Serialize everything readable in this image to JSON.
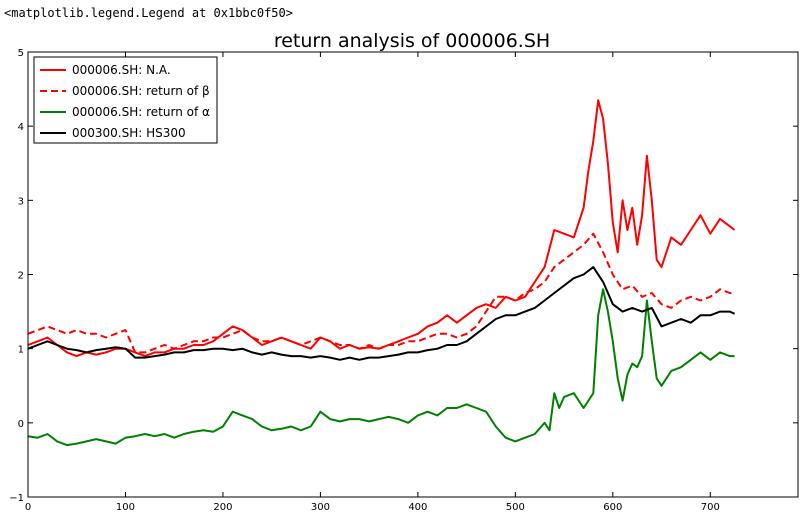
{
  "repr_text": "<matplotlib.legend.Legend at 0x1bbc0f50>",
  "chart_data": {
    "type": "line",
    "title": "return analysis of 000006.SH",
    "xlabel": "",
    "ylabel": "",
    "xlim": [
      0,
      790
    ],
    "ylim": [
      -1,
      5
    ],
    "xticks": [
      0,
      100,
      200,
      300,
      400,
      500,
      600,
      700
    ],
    "yticks": [
      -1,
      0,
      1,
      2,
      3,
      4,
      5
    ],
    "grid": false,
    "legend_position": "top-left",
    "series": [
      {
        "name": "000006.SH: N.A.",
        "color": "#ff0000",
        "style": "solid",
        "x": [
          0,
          10,
          20,
          30,
          40,
          50,
          60,
          70,
          80,
          90,
          100,
          110,
          120,
          130,
          140,
          150,
          160,
          170,
          180,
          190,
          200,
          210,
          220,
          230,
          240,
          250,
          260,
          270,
          280,
          290,
          300,
          310,
          320,
          330,
          340,
          350,
          360,
          370,
          380,
          390,
          400,
          410,
          420,
          430,
          440,
          450,
          460,
          470,
          480,
          490,
          500,
          510,
          520,
          530,
          540,
          550,
          560,
          570,
          575,
          580,
          585,
          590,
          595,
          600,
          605,
          610,
          615,
          620,
          625,
          630,
          635,
          640,
          645,
          650,
          660,
          670,
          680,
          690,
          700,
          710,
          720,
          725
        ],
        "values": [
          1.05,
          1.1,
          1.15,
          1.05,
          0.95,
          0.9,
          0.95,
          0.92,
          0.95,
          1.0,
          1.0,
          0.95,
          0.9,
          0.95,
          0.95,
          1.0,
          1.0,
          1.05,
          1.05,
          1.1,
          1.2,
          1.3,
          1.25,
          1.15,
          1.05,
          1.1,
          1.15,
          1.1,
          1.05,
          1.0,
          1.15,
          1.1,
          1.0,
          1.05,
          1.0,
          1.02,
          1.0,
          1.05,
          1.1,
          1.15,
          1.2,
          1.3,
          1.35,
          1.45,
          1.35,
          1.45,
          1.55,
          1.6,
          1.55,
          1.7,
          1.65,
          1.7,
          1.9,
          2.1,
          2.6,
          2.55,
          2.5,
          2.9,
          3.4,
          3.8,
          4.35,
          4.1,
          3.5,
          2.7,
          2.3,
          3.0,
          2.6,
          2.9,
          2.4,
          2.8,
          3.6,
          3.0,
          2.2,
          2.1,
          2.5,
          2.4,
          2.6,
          2.8,
          2.55,
          2.75,
          2.65,
          2.6
        ]
      },
      {
        "name": "000006.SH: return of β",
        "color": "#ff0000",
        "style": "dashed",
        "x": [
          0,
          10,
          20,
          30,
          40,
          50,
          60,
          70,
          80,
          90,
          100,
          110,
          120,
          130,
          140,
          150,
          160,
          170,
          180,
          190,
          200,
          210,
          220,
          230,
          240,
          250,
          260,
          270,
          280,
          290,
          300,
          310,
          320,
          330,
          340,
          350,
          360,
          370,
          380,
          390,
          400,
          410,
          420,
          430,
          440,
          450,
          460,
          470,
          480,
          490,
          500,
          510,
          520,
          530,
          540,
          550,
          560,
          570,
          580,
          590,
          600,
          610,
          620,
          630,
          640,
          650,
          660,
          670,
          680,
          690,
          700,
          710,
          720,
          725
        ],
        "values": [
          1.2,
          1.25,
          1.3,
          1.25,
          1.2,
          1.25,
          1.2,
          1.2,
          1.15,
          1.2,
          1.25,
          0.95,
          0.95,
          1.0,
          1.05,
          1.0,
          1.05,
          1.1,
          1.1,
          1.15,
          1.15,
          1.2,
          1.25,
          1.15,
          1.1,
          1.1,
          1.15,
          1.1,
          1.05,
          1.1,
          1.15,
          1.1,
          1.05,
          1.05,
          1.0,
          1.05,
          1.0,
          1.05,
          1.05,
          1.1,
          1.1,
          1.15,
          1.2,
          1.2,
          1.15,
          1.2,
          1.3,
          1.5,
          1.7,
          1.7,
          1.65,
          1.75,
          1.8,
          1.9,
          2.1,
          2.2,
          2.3,
          2.4,
          2.55,
          2.3,
          2.0,
          1.8,
          1.85,
          1.7,
          1.75,
          1.6,
          1.55,
          1.65,
          1.7,
          1.65,
          1.7,
          1.8,
          1.75,
          1.75
        ]
      },
      {
        "name": "000006.SH: return of α",
        "color": "#008000",
        "style": "solid",
        "x": [
          0,
          10,
          20,
          30,
          40,
          50,
          60,
          70,
          80,
          90,
          100,
          110,
          120,
          130,
          140,
          150,
          160,
          170,
          180,
          190,
          200,
          210,
          220,
          230,
          240,
          250,
          260,
          270,
          280,
          290,
          300,
          310,
          320,
          330,
          340,
          350,
          360,
          370,
          380,
          390,
          400,
          410,
          420,
          430,
          440,
          450,
          460,
          470,
          480,
          490,
          500,
          510,
          520,
          530,
          535,
          540,
          545,
          550,
          560,
          570,
          580,
          585,
          590,
          595,
          600,
          605,
          610,
          615,
          620,
          625,
          630,
          635,
          640,
          645,
          650,
          660,
          670,
          680,
          690,
          700,
          710,
          720,
          725
        ],
        "values": [
          -0.18,
          -0.2,
          -0.15,
          -0.25,
          -0.3,
          -0.28,
          -0.25,
          -0.22,
          -0.25,
          -0.28,
          -0.2,
          -0.18,
          -0.15,
          -0.18,
          -0.15,
          -0.2,
          -0.15,
          -0.12,
          -0.1,
          -0.12,
          -0.05,
          0.15,
          0.1,
          0.05,
          -0.05,
          -0.1,
          -0.08,
          -0.05,
          -0.1,
          -0.05,
          0.15,
          0.05,
          0.02,
          0.05,
          0.05,
          0.02,
          0.05,
          0.08,
          0.05,
          0.0,
          0.1,
          0.15,
          0.1,
          0.2,
          0.2,
          0.25,
          0.2,
          0.15,
          -0.05,
          -0.2,
          -0.25,
          -0.2,
          -0.15,
          0.0,
          -0.1,
          0.4,
          0.2,
          0.35,
          0.4,
          0.2,
          0.4,
          1.45,
          1.8,
          1.5,
          1.1,
          0.6,
          0.3,
          0.65,
          0.8,
          0.75,
          0.9,
          1.65,
          1.1,
          0.6,
          0.5,
          0.7,
          0.75,
          0.85,
          0.95,
          0.85,
          0.95,
          0.9,
          0.9
        ]
      },
      {
        "name": "000300.SH: HS300",
        "color": "#000000",
        "style": "solid",
        "x": [
          0,
          10,
          20,
          30,
          40,
          50,
          60,
          70,
          80,
          90,
          100,
          110,
          120,
          130,
          140,
          150,
          160,
          170,
          180,
          190,
          200,
          210,
          220,
          230,
          240,
          250,
          260,
          270,
          280,
          290,
          300,
          310,
          320,
          330,
          340,
          350,
          360,
          370,
          380,
          390,
          400,
          410,
          420,
          430,
          440,
          450,
          460,
          470,
          480,
          490,
          500,
          510,
          520,
          530,
          540,
          550,
          560,
          570,
          580,
          590,
          600,
          610,
          620,
          630,
          640,
          650,
          660,
          670,
          680,
          690,
          700,
          710,
          720,
          725
        ],
        "values": [
          1.0,
          1.05,
          1.1,
          1.05,
          1.0,
          0.98,
          0.95,
          0.98,
          1.0,
          1.02,
          1.0,
          0.88,
          0.88,
          0.9,
          0.92,
          0.95,
          0.95,
          0.98,
          0.98,
          1.0,
          1.0,
          0.98,
          1.0,
          0.95,
          0.92,
          0.95,
          0.92,
          0.9,
          0.9,
          0.88,
          0.9,
          0.88,
          0.85,
          0.88,
          0.85,
          0.88,
          0.88,
          0.9,
          0.92,
          0.95,
          0.95,
          0.98,
          1.0,
          1.05,
          1.05,
          1.1,
          1.2,
          1.3,
          1.4,
          1.45,
          1.45,
          1.5,
          1.55,
          1.65,
          1.75,
          1.85,
          1.95,
          2.0,
          2.1,
          1.9,
          1.6,
          1.5,
          1.55,
          1.5,
          1.55,
          1.3,
          1.35,
          1.4,
          1.35,
          1.45,
          1.45,
          1.5,
          1.5,
          1.47
        ]
      }
    ]
  }
}
